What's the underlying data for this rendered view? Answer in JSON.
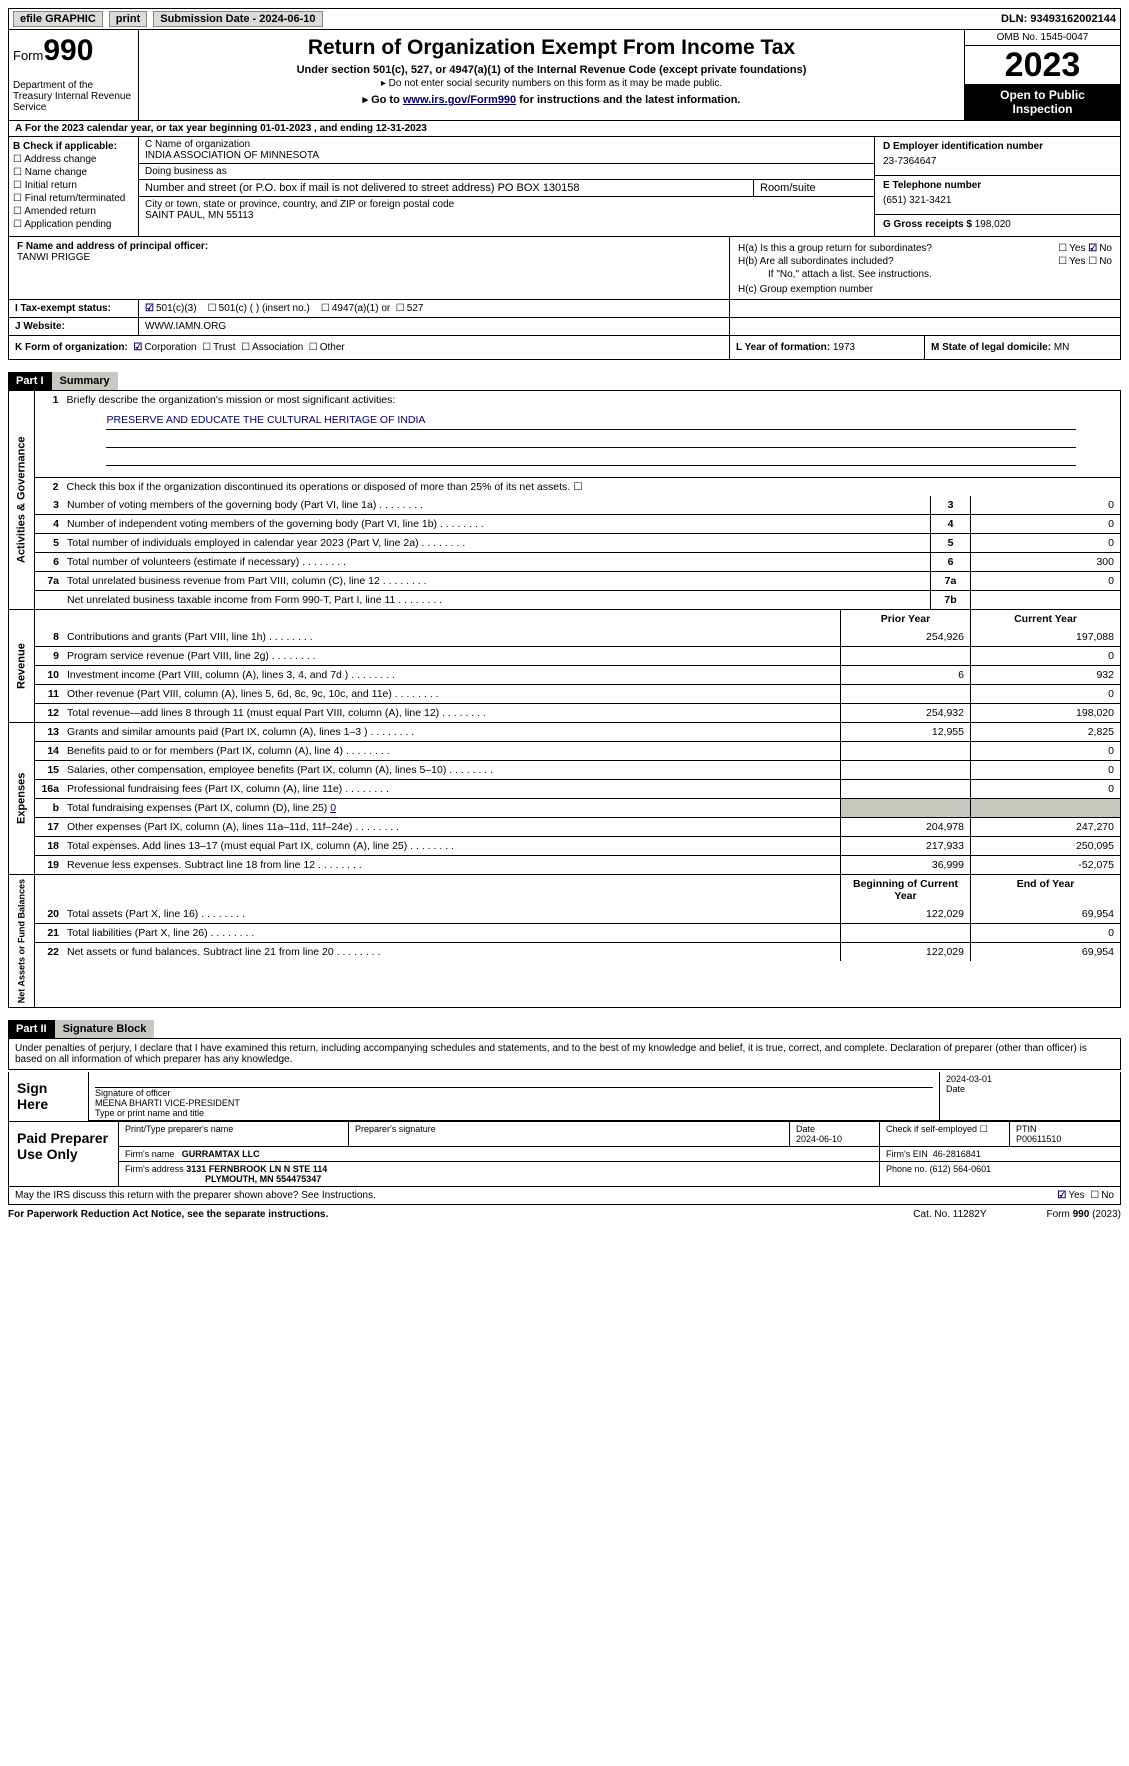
{
  "topbar": {
    "efile": "efile GRAPHIC",
    "print": "print",
    "submission": "Submission Date - 2024-06-10",
    "dln": "DLN: 93493162002144"
  },
  "header": {
    "form": "Form",
    "num": "990",
    "title": "Return of Organization Exempt From Income Tax",
    "sub": "Under section 501(c), 527, or 4947(a)(1) of the Internal Revenue Code (except private foundations)",
    "note": "Do not enter social security numbers on this form as it may be made public.",
    "goto_pre": "Go to ",
    "goto_link": "www.irs.gov/Form990",
    "goto_post": " for instructions and the latest information.",
    "dept": "Department of the Treasury Internal Revenue Service",
    "omb": "OMB No. 1545-0047",
    "year": "2023",
    "open": "Open to Public Inspection"
  },
  "lineA": "For the 2023 calendar year, or tax year beginning 01-01-2023   , and ending 12-31-2023",
  "B": {
    "lbl": "B Check if applicable:",
    "items": [
      "Address change",
      "Name change",
      "Initial return",
      "Final return/terminated",
      "Amended return",
      "Application pending"
    ]
  },
  "C": {
    "name_lbl": "C Name of organization",
    "name": "INDIA ASSOCIATION OF MINNESOTA",
    "dba_lbl": "Doing business as",
    "dba": "",
    "street_lbl": "Number and street (or P.O. box if mail is not delivered to street address)",
    "room_lbl": "Room/suite",
    "street": "PO BOX 130158",
    "city_lbl": "City or town, state or province, country, and ZIP or foreign postal code",
    "city": "SAINT PAUL, MN  55113"
  },
  "D": {
    "lbl": "D Employer identification number",
    "val": "23-7364647"
  },
  "E": {
    "lbl": "E Telephone number",
    "val": "(651) 321-3421"
  },
  "G": {
    "lbl": "G Gross receipts $",
    "val": "198,020"
  },
  "F": {
    "lbl": "F  Name and address of principal officer:",
    "name": "TANWI PRIGGE"
  },
  "H": {
    "a": "H(a)  Is this a group return for subordinates?",
    "b": "H(b)  Are all subordinates included?",
    "b_note": "If \"No,\" attach a list. See instructions.",
    "c": "H(c)  Group exemption number",
    "yes": "Yes",
    "no": "No"
  },
  "I": {
    "lbl": "I    Tax-exempt status:",
    "opt1": "501(c)(3)",
    "opt2": "501(c) (  ) (insert no.)",
    "opt3": "4947(a)(1) or",
    "opt4": "527"
  },
  "J": {
    "lbl": "J    Website:",
    "val": "WWW.IAMN.ORG"
  },
  "K": {
    "lbl": "K Form of organization:",
    "opts": [
      "Corporation",
      "Trust",
      "Association",
      "Other"
    ]
  },
  "L": {
    "lbl": "L Year of formation:",
    "val": "1973"
  },
  "M": {
    "lbl": "M State of legal domicile:",
    "val": "MN"
  },
  "part1": {
    "num": "Part I",
    "title": "Summary"
  },
  "gov": {
    "tab": "Activities & Governance",
    "q1": "Briefly describe the organization's mission or most significant activities:",
    "mission": "PRESERVE AND EDUCATE THE CULTURAL HERITAGE OF INDIA",
    "q2": "Check this box      if the organization discontinued its operations or disposed of more than 25% of its net assets.",
    "rows": [
      {
        "n": "3",
        "d": "Number of voting members of the governing body (Part VI, line 1a)",
        "b": "3",
        "v": "0"
      },
      {
        "n": "4",
        "d": "Number of independent voting members of the governing body (Part VI, line 1b)",
        "b": "4",
        "v": "0"
      },
      {
        "n": "5",
        "d": "Total number of individuals employed in calendar year 2023 (Part V, line 2a)",
        "b": "5",
        "v": "0"
      },
      {
        "n": "6",
        "d": "Total number of volunteers (estimate if necessary)",
        "b": "6",
        "v": "300"
      },
      {
        "n": "7a",
        "d": "Total unrelated business revenue from Part VIII, column (C), line 12",
        "b": "7a",
        "v": "0"
      },
      {
        "n": "",
        "d": "Net unrelated business taxable income from Form 990-T, Part I, line 11",
        "b": "7b",
        "v": ""
      }
    ]
  },
  "rev": {
    "tab": "Revenue",
    "hdr1": "Prior Year",
    "hdr2": "Current Year",
    "rows": [
      {
        "n": "8",
        "d": "Contributions and grants (Part VIII, line 1h)",
        "v1": "254,926",
        "v2": "197,088"
      },
      {
        "n": "9",
        "d": "Program service revenue (Part VIII, line 2g)",
        "v1": "",
        "v2": "0"
      },
      {
        "n": "10",
        "d": "Investment income (Part VIII, column (A), lines 3, 4, and 7d )",
        "v1": "6",
        "v2": "932"
      },
      {
        "n": "11",
        "d": "Other revenue (Part VIII, column (A), lines 5, 6d, 8c, 9c, 10c, and 11e)",
        "v1": "",
        "v2": "0"
      },
      {
        "n": "12",
        "d": "Total revenue—add lines 8 through 11 (must equal Part VIII, column (A), line 12)",
        "v1": "254,932",
        "v2": "198,020"
      }
    ]
  },
  "exp": {
    "tab": "Expenses",
    "rows": [
      {
        "n": "13",
        "d": "Grants and similar amounts paid (Part IX, column (A), lines 1–3 )",
        "v1": "12,955",
        "v2": "2,825"
      },
      {
        "n": "14",
        "d": "Benefits paid to or for members (Part IX, column (A), line 4)",
        "v1": "",
        "v2": "0"
      },
      {
        "n": "15",
        "d": "Salaries, other compensation, employee benefits (Part IX, column (A), lines 5–10)",
        "v1": "",
        "v2": "0"
      },
      {
        "n": "16a",
        "d": "Professional fundraising fees (Part IX, column (A), line 11e)",
        "v1": "",
        "v2": "0"
      },
      {
        "n": "b",
        "d": "Total fundraising expenses (Part IX, column (D), line 25)",
        "fe": "0",
        "shade": true
      },
      {
        "n": "17",
        "d": "Other expenses (Part IX, column (A), lines 11a–11d, 11f–24e)",
        "v1": "204,978",
        "v2": "247,270"
      },
      {
        "n": "18",
        "d": "Total expenses. Add lines 13–17 (must equal Part IX, column (A), line 25)",
        "v1": "217,933",
        "v2": "250,095"
      },
      {
        "n": "19",
        "d": "Revenue less expenses. Subtract line 18 from line 12",
        "v1": "36,999",
        "v2": "-52,075"
      }
    ]
  },
  "net": {
    "tab": "Net Assets or Fund Balances",
    "hdr1": "Beginning of Current Year",
    "hdr2": "End of Year",
    "rows": [
      {
        "n": "20",
        "d": "Total assets (Part X, line 16)",
        "v1": "122,029",
        "v2": "69,954"
      },
      {
        "n": "21",
        "d": "Total liabilities (Part X, line 26)",
        "v1": "",
        "v2": "0"
      },
      {
        "n": "22",
        "d": "Net assets or fund balances. Subtract line 21 from line 20",
        "v1": "122,029",
        "v2": "69,954"
      }
    ]
  },
  "part2": {
    "num": "Part II",
    "title": "Signature Block"
  },
  "sig": {
    "decl": "Under penalties of perjury, I declare that I have examined this return, including accompanying schedules and statements, and to the best of my knowledge and belief, it is true, correct, and complete. Declaration of preparer (other than officer) is based on all information of which preparer has any knowledge.",
    "sign_here": "Sign Here",
    "sig_officer": "Signature of officer",
    "officer": "MEENA BHARTI  VICE-PRESIDENT",
    "type_name": "Type or print name and title",
    "date_lbl": "Date",
    "date": "2024-03-01",
    "paid": "Paid Preparer Use Only",
    "prep_name_lbl": "Print/Type preparer's name",
    "prep_sig_lbl": "Preparer's signature",
    "prep_date": "2024-06-10",
    "self_emp": "Check       if self-employed",
    "ptin_lbl": "PTIN",
    "ptin": "P00611510",
    "firm_name_lbl": "Firm's name",
    "firm_name": "GURRAMTAX LLC",
    "firm_ein_lbl": "Firm's EIN",
    "firm_ein": "46-2816841",
    "firm_addr_lbl": "Firm's address",
    "firm_addr1": "3131 FERNBROOK LN N STE 114",
    "firm_addr2": "PLYMOUTH, MN  554475347",
    "phone_lbl": "Phone no.",
    "phone": "(612) 564-0601",
    "may_irs": "May the IRS discuss this return with the preparer shown above? See Instructions."
  },
  "footer": {
    "pra": "For Paperwork Reduction Act Notice, see the separate instructions.",
    "cat": "Cat. No. 11282Y",
    "form": "Form 990 (2023)"
  }
}
